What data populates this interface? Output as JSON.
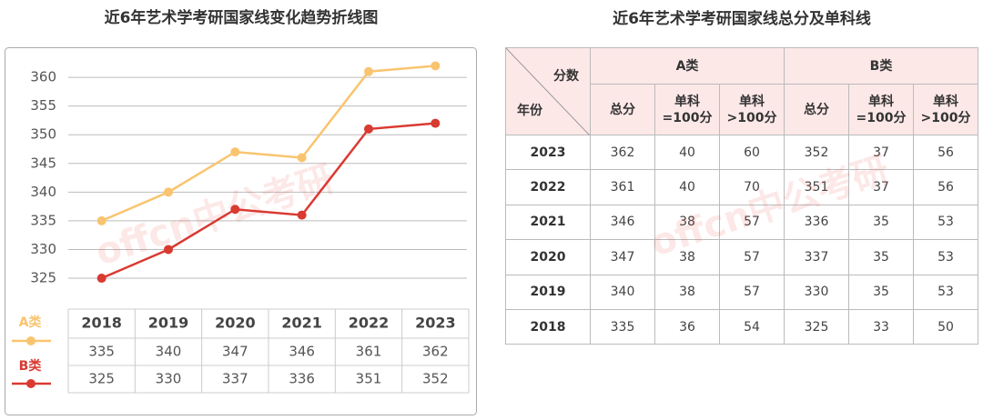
{
  "chart_data": {
    "type": "line",
    "title": "近6年艺术学考研国家线变化趋势折线图",
    "categories": [
      "2018",
      "2019",
      "2020",
      "2021",
      "2022",
      "2023"
    ],
    "series": [
      {
        "name": "A类",
        "color": "#f9c46f",
        "values": [
          335,
          340,
          347,
          346,
          361,
          362
        ]
      },
      {
        "name": "B类",
        "color": "#d93a31",
        "values": [
          325,
          330,
          337,
          336,
          351,
          352
        ]
      }
    ],
    "ylim": [
      320,
      365
    ],
    "yticks": [
      325,
      330,
      335,
      340,
      345,
      350,
      355,
      360
    ],
    "grid": true
  },
  "table": {
    "title": "近6年艺术学考研国家线总分及单科线",
    "corner": {
      "top": "分数",
      "bottom": "年份"
    },
    "groups": [
      "A类",
      "B类"
    ],
    "columns": [
      "总分",
      "单科\n=100分",
      "单科\n>100分",
      "总分",
      "单科\n=100分",
      "单科\n>100分"
    ],
    "rows": [
      [
        "2023",
        362,
        40,
        60,
        352,
        37,
        56
      ],
      [
        "2022",
        361,
        40,
        70,
        351,
        37,
        56
      ],
      [
        "2021",
        346,
        38,
        57,
        336,
        35,
        53
      ],
      [
        "2020",
        347,
        38,
        57,
        337,
        35,
        53
      ],
      [
        "2019",
        340,
        38,
        57,
        330,
        35,
        53
      ],
      [
        "2018",
        335,
        36,
        54,
        325,
        33,
        50
      ]
    ]
  },
  "watermark": "offcn中公考研"
}
